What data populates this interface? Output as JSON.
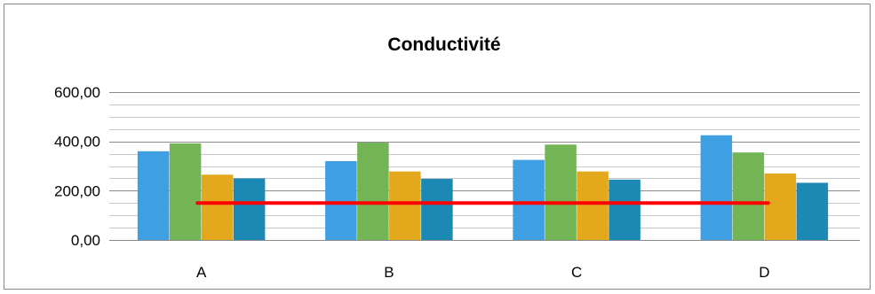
{
  "chart_data": {
    "type": "bar",
    "title": "Conductivité",
    "xlabel": "",
    "ylabel": "",
    "categories": [
      "A",
      "B",
      "C",
      "D"
    ],
    "ylim": [
      0,
      600
    ],
    "y_ticks": [
      "0,00",
      "200,00",
      "400,00",
      "600,00"
    ],
    "y_tick_values": [
      0,
      200,
      400,
      600
    ],
    "minor_grid_step": 50,
    "grid": true,
    "legend": "none",
    "series": [
      {
        "color": "#3f9fe3",
        "values": [
          360,
          320,
          325,
          425
        ]
      },
      {
        "color": "#73b455",
        "values": [
          392,
          395,
          387,
          355
        ]
      },
      {
        "color": "#e4a81d",
        "values": [
          265,
          278,
          278,
          270
        ]
      },
      {
        "color": "#1b89b4",
        "values": [
          250,
          248,
          245,
          232
        ]
      }
    ],
    "reference_line": {
      "value": 150,
      "color": "#ff0000"
    }
  }
}
